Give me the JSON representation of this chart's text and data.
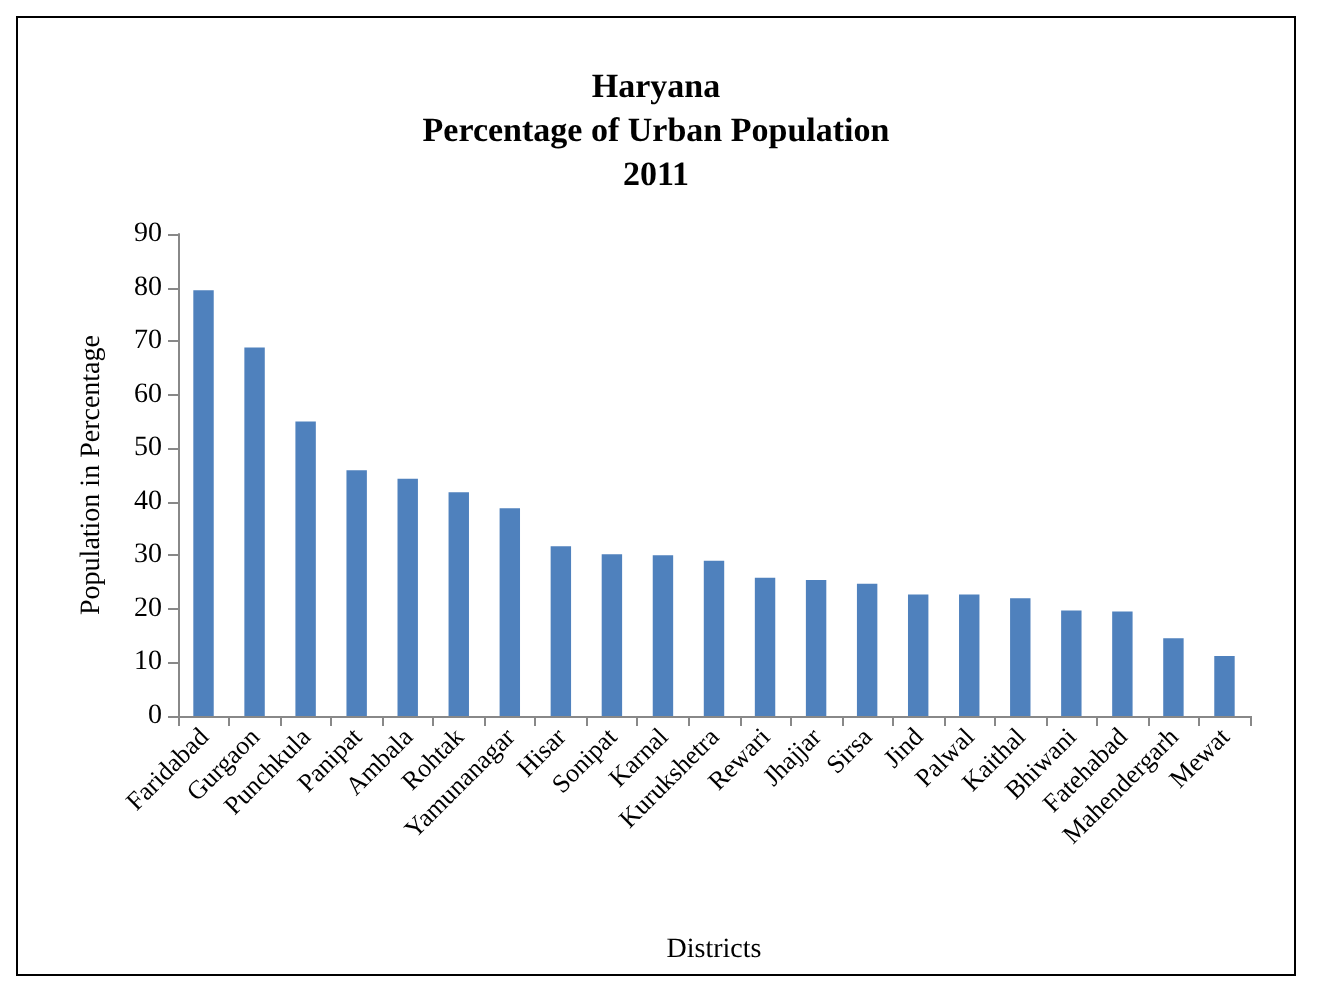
{
  "chart_data": {
    "type": "bar",
    "title": "Haryana\nPercentage of Urban Population\n2011",
    "xlabel": "Districts",
    "ylabel": "Population in Percentage",
    "categories": [
      "Faridabad",
      "Gurgaon",
      "Punchkula",
      "Panipat",
      "Ambala",
      "Rohtak",
      "Yamunanagar",
      "Hisar",
      "Sonipat",
      "Karnal",
      "Kurukshetra",
      "Rewari",
      "Jhajjar",
      "Sirsa",
      "Jind",
      "Palwal",
      "Kaithal",
      "Bhiwani",
      "Fatehabad",
      "Mahendergarh",
      "Mewat"
    ],
    "values": [
      79.5,
      68.8,
      55.0,
      45.9,
      44.3,
      41.8,
      38.8,
      31.7,
      30.2,
      30.0,
      29.0,
      25.8,
      25.4,
      24.7,
      22.7,
      22.7,
      22.0,
      19.7,
      19.5,
      14.5,
      11.2
    ],
    "color": "#4f81bd",
    "ylim": [
      0,
      90
    ],
    "yticks": [
      0,
      10,
      20,
      30,
      40,
      50,
      60,
      70,
      80,
      90
    ],
    "grid": false
  }
}
